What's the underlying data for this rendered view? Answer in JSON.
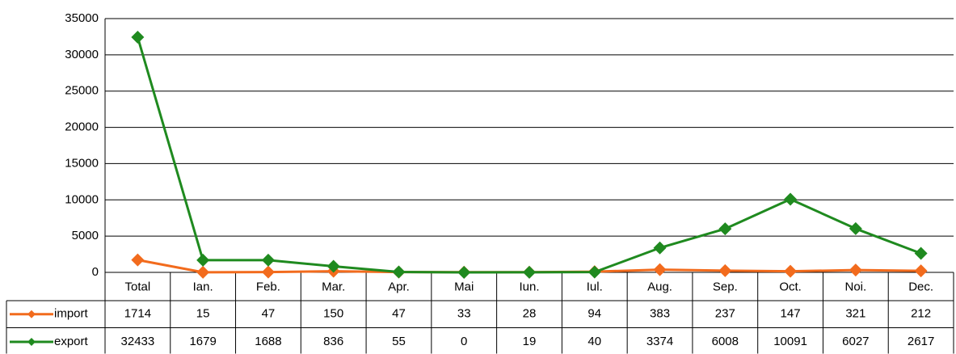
{
  "chart_data": {
    "type": "line",
    "categories": [
      "Total",
      "Ian.",
      "Feb.",
      "Mar.",
      "Apr.",
      "Mai",
      "Iun.",
      "Iul.",
      "Aug.",
      "Sep.",
      "Oct.",
      "Noi.",
      "Dec."
    ],
    "series": [
      {
        "name": "import",
        "color": "#f26b1d",
        "values": [
          1714,
          15,
          47,
          150,
          47,
          33,
          28,
          94,
          383,
          237,
          147,
          321,
          212
        ]
      },
      {
        "name": "export",
        "color": "#1f8a1f",
        "values": [
          32433,
          1679,
          1688,
          836,
          55,
          0,
          19,
          40,
          3374,
          6008,
          10091,
          6027,
          2617
        ]
      }
    ],
    "ylim": [
      0,
      35000
    ],
    "yticks": [
      0,
      5000,
      10000,
      15000,
      20000,
      25000,
      30000,
      35000
    ],
    "grid": true
  }
}
